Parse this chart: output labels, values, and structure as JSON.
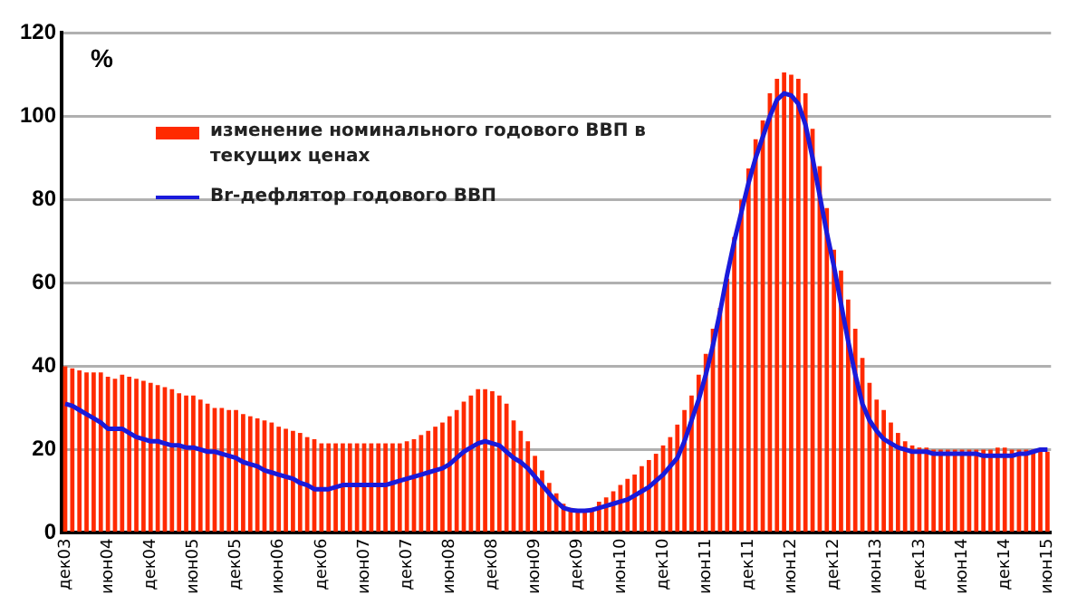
{
  "chart_data": {
    "type": "bar",
    "ylabel": "%",
    "categories": [
      "дек03",
      null,
      null,
      null,
      null,
      null,
      "июн04",
      null,
      null,
      null,
      null,
      null,
      "дек04",
      null,
      null,
      null,
      null,
      null,
      "июн05",
      null,
      null,
      null,
      null,
      null,
      "дек05",
      null,
      null,
      null,
      null,
      null,
      "июн06",
      null,
      null,
      null,
      null,
      null,
      "дек06",
      null,
      null,
      null,
      null,
      null,
      "июн07",
      null,
      null,
      null,
      null,
      null,
      "дек07",
      null,
      null,
      null,
      null,
      null,
      "июн08",
      null,
      null,
      null,
      null,
      null,
      "дек08",
      null,
      null,
      null,
      null,
      null,
      "июн09",
      null,
      null,
      null,
      null,
      null,
      "дек09",
      null,
      null,
      null,
      null,
      null,
      "июн10",
      null,
      null,
      null,
      null,
      null,
      "дек10",
      null,
      null,
      null,
      null,
      null,
      "июн11",
      null,
      null,
      null,
      null,
      null,
      "дек11",
      null,
      null,
      null,
      null,
      null,
      "июн12",
      null,
      null,
      null,
      null,
      null,
      "дек12",
      null,
      null,
      null,
      null,
      null,
      "июн13",
      null,
      null,
      null,
      null,
      null,
      "дек13",
      null,
      null,
      null,
      null,
      null,
      "июн14",
      null,
      null,
      null,
      null,
      null,
      "дек14",
      null,
      null,
      null,
      null,
      null,
      "июн15"
    ],
    "series": [
      {
        "name": "изменение номинального  годового ВВП в текущих ценах",
        "color": "#ff2a00",
        "values": [
          40,
          39.5,
          39,
          38.5,
          38.5,
          38.5,
          37.5,
          37,
          38,
          37.5,
          37,
          36.5,
          36,
          35.5,
          35,
          34.5,
          33.5,
          33,
          33,
          32,
          31,
          30,
          30,
          29.5,
          29.5,
          28.5,
          28,
          27.5,
          27,
          26.5,
          25.5,
          25,
          24.5,
          24,
          23,
          22.5,
          21.5,
          21.5,
          21.5,
          21.5,
          21.5,
          21.5,
          21.5,
          21.5,
          21.5,
          21.5,
          21.5,
          21.5,
          22,
          22.5,
          23.5,
          24.5,
          25.5,
          26.5,
          28,
          29.5,
          31.5,
          33,
          34.5,
          34.5,
          34,
          33,
          31,
          27,
          24.5,
          22,
          18.5,
          15,
          12,
          9.5,
          7,
          6,
          5.5,
          5.5,
          6,
          7.5,
          8.5,
          10,
          11.5,
          13,
          14,
          16,
          17.5,
          19,
          21,
          23,
          26,
          29.5,
          33,
          38,
          43,
          49,
          54,
          61,
          71,
          80,
          87.5,
          94.5,
          99,
          105.5,
          109,
          110.5,
          110,
          109,
          105.5,
          97,
          88,
          78,
          68,
          63,
          56,
          49,
          42,
          36,
          32,
          29.5,
          26.5,
          24,
          22,
          21,
          20.5,
          20.5,
          20,
          20,
          20,
          20,
          20,
          20,
          20,
          20,
          20,
          20.5,
          20.5,
          20,
          20,
          20,
          20,
          20,
          19.5
        ]
      },
      {
        "name": "Br-дефлятор годового ВВП",
        "type": "line",
        "color": "#1a1adb",
        "values": [
          31,
          30.5,
          29.5,
          28.5,
          27.5,
          26.5,
          25,
          25,
          25,
          24,
          23,
          22.5,
          22,
          22,
          21.5,
          21,
          21,
          20.5,
          20.5,
          20,
          19.5,
          19.5,
          19,
          18.5,
          18,
          17,
          16.5,
          16,
          15,
          14.5,
          14,
          13.5,
          13,
          12,
          11.5,
          10.5,
          10.5,
          10.5,
          11,
          11.5,
          11.5,
          11.5,
          11.5,
          11.5,
          11.5,
          11.5,
          12,
          12.5,
          13,
          13.5,
          14,
          14.5,
          15,
          15.5,
          16.5,
          18,
          19.5,
          20.5,
          21.5,
          22,
          21.5,
          21,
          19.5,
          18,
          17,
          15.5,
          13.5,
          11.5,
          9.5,
          7.5,
          6,
          5.5,
          5.3,
          5.3,
          5.5,
          6,
          6.5,
          7,
          7.5,
          8,
          9,
          10,
          11,
          12.5,
          14,
          16,
          18,
          22,
          27,
          32,
          38,
          45,
          53,
          62,
          70,
          77,
          84,
          90,
          95,
          100,
          104,
          105.5,
          105,
          103,
          98,
          90,
          81,
          72,
          64,
          55,
          46,
          38,
          31,
          27,
          24.5,
          22.5,
          21.5,
          20.5,
          20,
          19.5,
          19.5,
          19.5,
          19,
          19,
          19,
          19,
          19,
          19,
          19,
          18.5,
          18.5,
          18.5,
          18.5,
          18.5,
          19,
          19,
          19.5,
          20,
          20
        ]
      }
    ],
    "ylim": [
      0,
      120
    ],
    "yticks": [
      0,
      20,
      40,
      60,
      80,
      100,
      120
    ],
    "grid": "y",
    "legend": "top left",
    "line_style": "solid"
  }
}
